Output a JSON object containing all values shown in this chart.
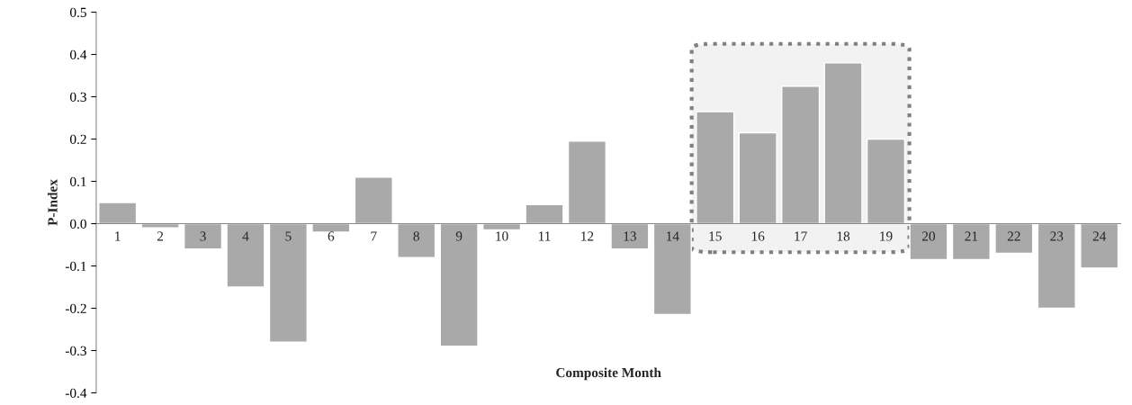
{
  "chart_data": {
    "type": "bar",
    "xlabel": "Composite Month",
    "ylabel": "P-Index",
    "categories": [
      "1",
      "2",
      "3",
      "4",
      "5",
      "6",
      "7",
      "8",
      "9",
      "10",
      "11",
      "12",
      "13",
      "14",
      "15",
      "16",
      "17",
      "18",
      "19",
      "20",
      "21",
      "22",
      "23",
      "24"
    ],
    "values": [
      0.05,
      -0.01,
      -0.06,
      -0.15,
      -0.28,
      -0.02,
      0.11,
      -0.08,
      -0.29,
      -0.015,
      0.045,
      0.195,
      -0.06,
      -0.215,
      0.265,
      0.215,
      0.325,
      0.38,
      0.2,
      -0.085,
      -0.085,
      -0.07,
      -0.2,
      -0.105
    ],
    "color": "#a9a9a9",
    "ylim": [
      -0.4,
      0.5
    ],
    "yticks": [
      -0.4,
      -0.3,
      -0.2,
      -0.1,
      {
        "value": 0.0,
        "label": "0.0"
      },
      0.1,
      0.2,
      0.3,
      0.4,
      0.5
    ],
    "bands": [
      {
        "axis": "x",
        "from": "15",
        "to": "19",
        "color": "#f2f2f2"
      }
    ],
    "grid": false
  }
}
